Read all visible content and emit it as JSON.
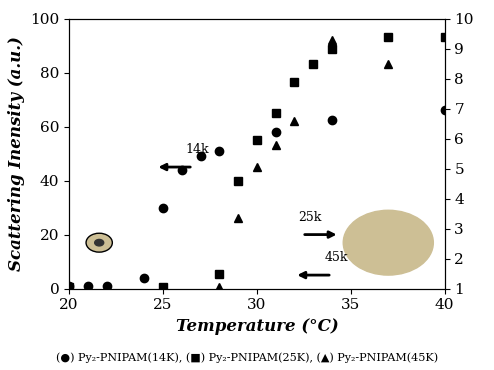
{
  "chart_data": {
    "type": "scatter",
    "x_label": "Temperature (°C)",
    "y_label": "Scattering Inensity (a.u.)",
    "caption": "(●) Py₂-PNIPAM(14K), (■) Py₂-PNIPAM(25K), (▲) Py₂-PNIPAM(45K)",
    "annotations": [
      "14k",
      "25k",
      "45k"
    ],
    "xlim": [
      20,
      40
    ],
    "xticks": [
      20,
      25,
      30,
      35,
      40
    ],
    "ylim": [
      0,
      100
    ],
    "yticks": [
      0,
      20,
      40,
      60,
      80,
      100
    ],
    "y2lim": [
      1,
      10
    ],
    "y2ticks": [
      1,
      2,
      3,
      4,
      5,
      6,
      7,
      8,
      9,
      10
    ],
    "grid": false,
    "series": [
      {
        "name": "Py₂-PNIPAM(14K)",
        "color": "#000000",
        "marker": "o",
        "line_style": "none",
        "x": [
          20,
          21,
          22,
          24,
          25,
          26,
          27,
          28,
          31,
          34,
          40
        ],
        "values": [
          1,
          1,
          1,
          4,
          30,
          44,
          49,
          51,
          58,
          62.5,
          66
        ]
      },
      {
        "name": "Py₂-PNIPAM(25K)",
        "color": "#000000",
        "marker": "s",
        "line_style": "none",
        "axis": "y2",
        "x": [
          20,
          25,
          28,
          29,
          30,
          31,
          32,
          33,
          34,
          37,
          40
        ],
        "values": [
          1.05,
          1.05,
          1.5,
          4.6,
          5.95,
          6.85,
          7.9,
          8.5,
          9.0,
          9.4,
          9.4
        ]
      },
      {
        "name": "Py₂-PNIPAM(45K)",
        "color": "#000000",
        "marker": "^",
        "line_style": "none",
        "x": [
          28,
          29,
          30,
          31,
          32,
          34,
          37
        ],
        "values": [
          0.5,
          26,
          45,
          53,
          62,
          92,
          83
        ]
      }
    ]
  }
}
